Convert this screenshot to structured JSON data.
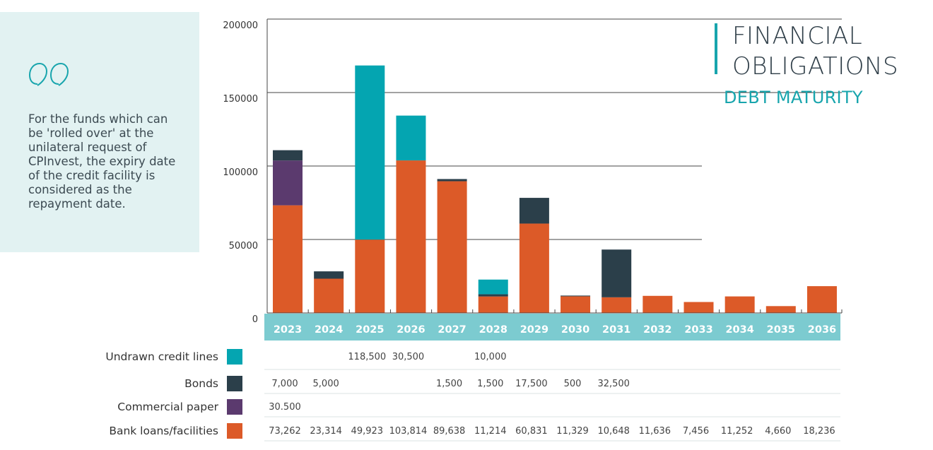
{
  "quote": {
    "text": "For the funds which can be 'rolled over' at the unilateral request of CPInvest, the expiry date of the credit facility is considered as the repayment date."
  },
  "header": {
    "title": "FINANCIAL\nOBLIGATIONS",
    "subtitle": "DEBT MATURITY"
  },
  "colors": {
    "undrawn": "#04a5b1",
    "bonds": "#2b3f4a",
    "paper": "#5b3a6e",
    "bank": "#dc5a28",
    "axis_band": "#7ccbd0",
    "panel": "#e2f2f2"
  },
  "chart_data": {
    "type": "bar",
    "stacked": true,
    "categories": [
      "2023",
      "2024",
      "2025",
      "2026",
      "2027",
      "2028",
      "2029",
      "2030",
      "2031",
      "2032",
      "2033",
      "2034",
      "2035",
      "2036"
    ],
    "ylim": [
      0,
      200000
    ],
    "yticks": [
      0,
      50000,
      100000,
      150000,
      200000
    ],
    "ytick_labels": [
      "0",
      "50000",
      "100000",
      "150000",
      "200000"
    ],
    "series": [
      {
        "name": "Bank loans/facilities",
        "color": "#dc5a28",
        "values": [
          73262,
          23314,
          49923,
          103814,
          89638,
          11214,
          60831,
          11329,
          10648,
          11636,
          7456,
          11252,
          4660,
          18236
        ],
        "labels": [
          "73,262",
          "23,314",
          "49,923",
          "103,814",
          "89,638",
          "11,214",
          "60,831",
          "11,329",
          "10,648",
          "11,636",
          "7,456",
          "11,252",
          "4,660",
          "18,236"
        ]
      },
      {
        "name": "Commercial paper",
        "color": "#5b3a6e",
        "values": [
          30500,
          0,
          0,
          0,
          0,
          0,
          0,
          0,
          0,
          0,
          0,
          0,
          0,
          0
        ],
        "labels": [
          "30.500",
          "",
          "",
          "",
          "",
          "",
          "",
          "",
          "",
          "",
          "",
          "",
          "",
          ""
        ]
      },
      {
        "name": "Bonds",
        "color": "#2b3f4a",
        "values": [
          7000,
          5000,
          0,
          0,
          1500,
          1500,
          17500,
          500,
          32500,
          0,
          0,
          0,
          0,
          0
        ],
        "labels": [
          "7,000",
          "5,000",
          "",
          "",
          "1,500",
          "1,500",
          "17,500",
          "500",
          "32,500",
          "",
          "",
          "",
          "",
          ""
        ]
      },
      {
        "name": "Undrawn credit lines",
        "color": "#04a5b1",
        "values": [
          0,
          0,
          118500,
          30500,
          0,
          10000,
          0,
          0,
          0,
          0,
          0,
          0,
          0,
          0
        ],
        "labels": [
          "",
          "",
          "118,500",
          "30,500",
          "",
          "10,000",
          "",
          "",
          "",
          "",
          "",
          "",
          "",
          ""
        ]
      }
    ],
    "table_order": [
      "Undrawn credit lines",
      "Bonds",
      "Commercial paper",
      "Bank loans/facilities"
    ],
    "grid": true
  }
}
